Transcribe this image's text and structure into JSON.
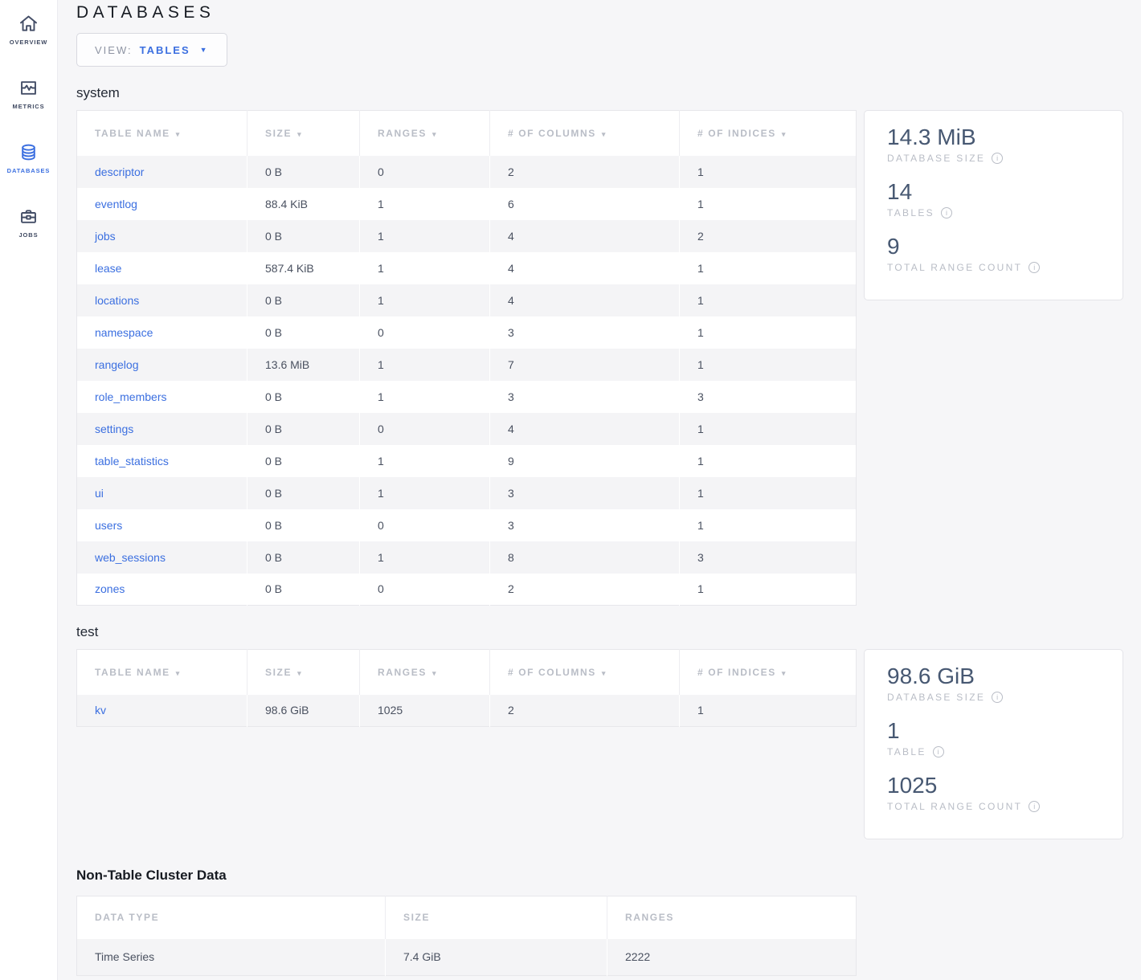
{
  "page": {
    "title": "DATABASES"
  },
  "view_selector": {
    "label": "VIEW:",
    "value": "TABLES"
  },
  "sidebar": {
    "items": [
      {
        "label": "OVERVIEW",
        "icon": "home-icon",
        "active": false
      },
      {
        "label": "METRICS",
        "icon": "metrics-icon",
        "active": false
      },
      {
        "label": "DATABASES",
        "icon": "database-icon",
        "active": true
      },
      {
        "label": "JOBS",
        "icon": "jobs-icon",
        "active": false
      }
    ]
  },
  "databases": [
    {
      "name": "system",
      "columns": [
        "TABLE NAME",
        "SIZE",
        "RANGES",
        "# OF COLUMNS",
        "# OF INDICES"
      ],
      "rows": [
        [
          "descriptor",
          "0 B",
          "0",
          "2",
          "1"
        ],
        [
          "eventlog",
          "88.4 KiB",
          "1",
          "6",
          "1"
        ],
        [
          "jobs",
          "0 B",
          "1",
          "4",
          "2"
        ],
        [
          "lease",
          "587.4 KiB",
          "1",
          "4",
          "1"
        ],
        [
          "locations",
          "0 B",
          "1",
          "4",
          "1"
        ],
        [
          "namespace",
          "0 B",
          "0",
          "3",
          "1"
        ],
        [
          "rangelog",
          "13.6 MiB",
          "1",
          "7",
          "1"
        ],
        [
          "role_members",
          "0 B",
          "1",
          "3",
          "3"
        ],
        [
          "settings",
          "0 B",
          "0",
          "4",
          "1"
        ],
        [
          "table_statistics",
          "0 B",
          "1",
          "9",
          "1"
        ],
        [
          "ui",
          "0 B",
          "1",
          "3",
          "1"
        ],
        [
          "users",
          "0 B",
          "0",
          "3",
          "1"
        ],
        [
          "web_sessions",
          "0 B",
          "1",
          "8",
          "3"
        ],
        [
          "zones",
          "0 B",
          "0",
          "2",
          "1"
        ]
      ],
      "summary": [
        {
          "value": "14.3 MiB",
          "label": "DATABASE SIZE"
        },
        {
          "value": "14",
          "label": "TABLES"
        },
        {
          "value": "9",
          "label": "TOTAL RANGE COUNT"
        }
      ]
    },
    {
      "name": "test",
      "columns": [
        "TABLE NAME",
        "SIZE",
        "RANGES",
        "# OF COLUMNS",
        "# OF INDICES"
      ],
      "rows": [
        [
          "kv",
          "98.6 GiB",
          "1025",
          "2",
          "1"
        ]
      ],
      "summary": [
        {
          "value": "98.6 GiB",
          "label": "DATABASE SIZE"
        },
        {
          "value": "1",
          "label": "TABLE"
        },
        {
          "value": "1025",
          "label": "TOTAL RANGE COUNT"
        }
      ]
    }
  ],
  "non_table_section": {
    "title": "Non-Table Cluster Data",
    "columns": [
      "DATA TYPE",
      "SIZE",
      "RANGES"
    ],
    "rows": [
      [
        "Time Series",
        "7.4 GiB",
        "2222"
      ]
    ]
  },
  "colors": {
    "accent_blue": "#3b6fe0",
    "stat_value": "#475872",
    "muted_gray": "#b9bdc6",
    "row_alt_bg": "#f4f4f6",
    "page_bg": "#f6f6f8"
  }
}
